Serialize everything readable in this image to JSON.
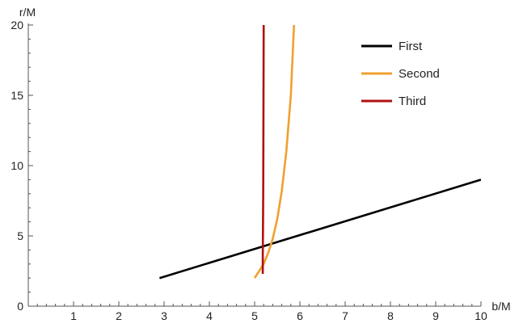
{
  "chart_data": {
    "type": "line",
    "title": "",
    "xlabel": "b/M",
    "ylabel": "r/M",
    "xlim": [
      0,
      10
    ],
    "ylim": [
      0,
      20
    ],
    "x_ticks": [
      1,
      2,
      3,
      4,
      5,
      6,
      7,
      8,
      9,
      10
    ],
    "y_ticks": [
      0,
      5,
      10,
      15,
      20
    ],
    "grid": false,
    "legend_position": "top-right",
    "series": [
      {
        "name": "First",
        "color": "#000000",
        "points": [
          [
            2.9,
            2.0
          ],
          [
            10.0,
            9.0
          ]
        ]
      },
      {
        "name": "Second",
        "color": "#F0A030",
        "points": [
          [
            5.0,
            2.0
          ],
          [
            5.1,
            2.5
          ],
          [
            5.2,
            3.0
          ],
          [
            5.3,
            3.8
          ],
          [
            5.4,
            4.8
          ],
          [
            5.5,
            6.2
          ],
          [
            5.6,
            8.2
          ],
          [
            5.7,
            11.0
          ],
          [
            5.8,
            15.0
          ],
          [
            5.87,
            20.0
          ]
        ]
      },
      {
        "name": "Third",
        "color": "#B01010",
        "points": [
          [
            5.18,
            2.3
          ],
          [
            5.18,
            3.5
          ],
          [
            5.19,
            8.0
          ],
          [
            5.2,
            20.0
          ]
        ]
      }
    ]
  }
}
